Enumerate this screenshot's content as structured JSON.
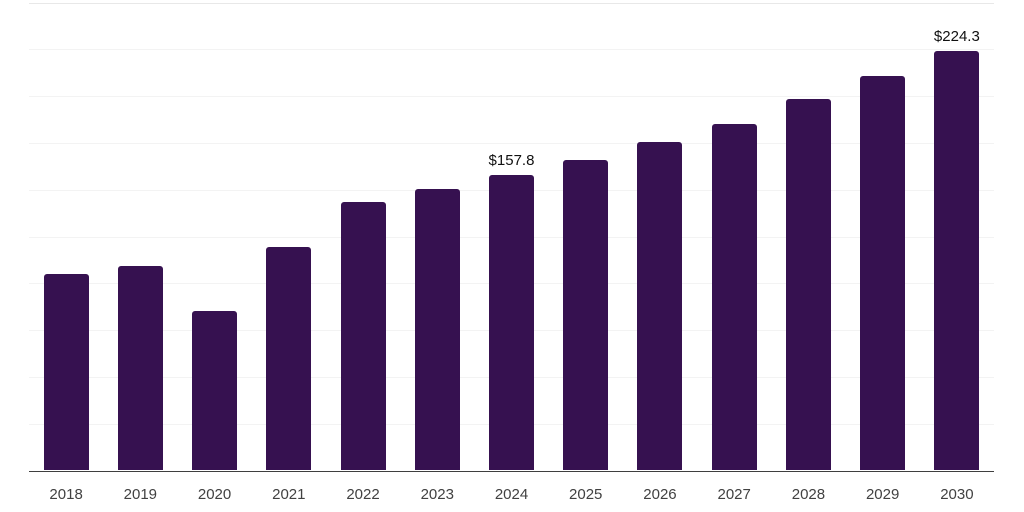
{
  "chart_data": {
    "type": "bar",
    "title": "",
    "xlabel": "",
    "ylabel": "",
    "categories": [
      "2018",
      "2019",
      "2020",
      "2021",
      "2022",
      "2023",
      "2024",
      "2025",
      "2026",
      "2027",
      "2028",
      "2029",
      "2030"
    ],
    "values": [
      104.8,
      109.2,
      85.1,
      119.6,
      143.2,
      150.3,
      157.8,
      165.9,
      175.7,
      185.2,
      198.5,
      210.6,
      224.3
    ],
    "data_labels": {
      "2024": "$157.8",
      "2030": "$224.3"
    },
    "ylim": [
      0,
      250
    ],
    "gridline_step": 25,
    "grid": true,
    "legend": "none",
    "y_axis_labels_visible": false,
    "colors": {
      "bar": "#361150",
      "axis_line": "#3f3f3f",
      "gridline": "#f3f3f3",
      "top_gridline": "#e8e8e8",
      "tick_label": "#414141",
      "data_label": "#111111",
      "background": "#ffffff"
    }
  }
}
